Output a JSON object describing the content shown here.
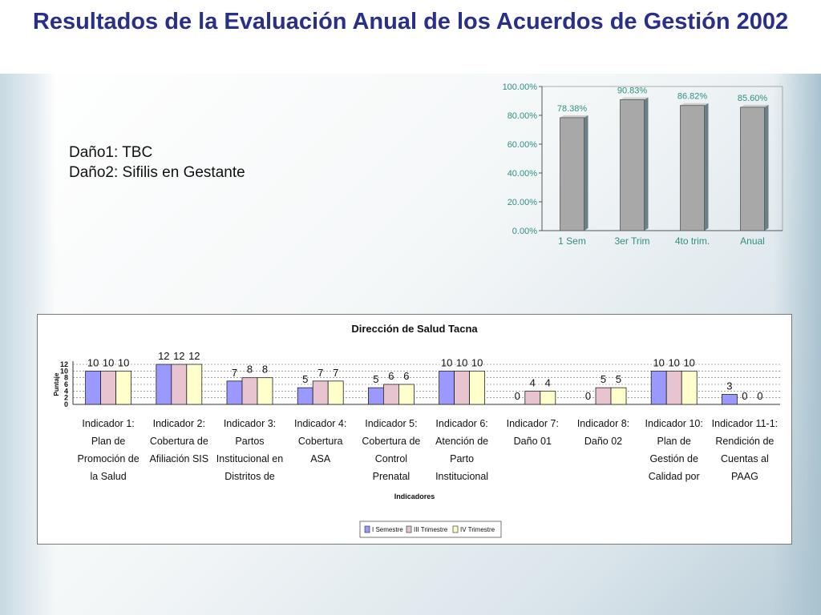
{
  "slide": {
    "title": "Resultados de la Evaluación Anual de los Acuerdos de Gestión 2002",
    "notes": [
      "Daño1: TBC",
      "Daño2: Sifilis en Gestante"
    ]
  },
  "chart_data": [
    {
      "type": "bar",
      "categories": [
        "1 Sem",
        "3er Trim",
        "4to trim.",
        "Anual"
      ],
      "values": [
        78.38,
        90.83,
        86.82,
        85.6
      ],
      "value_labels": [
        "78.38%",
        "90.83%",
        "86.82%",
        "85.60%"
      ],
      "yticks": [
        "0.00%",
        "20.00%",
        "40.00%",
        "60.00%",
        "80.00%",
        "100.00%"
      ],
      "ylim": [
        0,
        100
      ],
      "title": "",
      "xlabel": "",
      "ylabel": "",
      "bar_color": "#a8a8a8",
      "label_color": "#2f8f80",
      "grid": false,
      "legend": "none"
    },
    {
      "type": "bar",
      "title": "Dirección de Salud Tacna",
      "xlabel": "Indicadores",
      "ylabel": "Puntaje",
      "ylim": [
        0,
        12
      ],
      "yticks": [
        "0",
        "2",
        "4",
        "6",
        "8",
        "10",
        "12"
      ],
      "categories": [
        [
          "Indicador 1:",
          "Plan de",
          "Promoción de",
          "la Salud"
        ],
        [
          "Indicador 2:",
          "Cobertura de",
          "Afiliación SIS"
        ],
        [
          "Indicador 3:",
          "Partos",
          "Institucional en",
          "Distritos de"
        ],
        [
          "Indicador 4:",
          "Cobertura",
          "ASA"
        ],
        [
          "Indicador 5:",
          "Cobertura de",
          "Control",
          "Prenatal"
        ],
        [
          "Indicador 6:",
          "Atención de",
          "Parto",
          "Institucional"
        ],
        [
          "Indicador 7:",
          "Daño 01"
        ],
        [
          "Indicador 8:",
          "Daño 02"
        ],
        [
          "Indicador 10:",
          "Plan de",
          "Gestión de",
          "Calidad por"
        ],
        [
          "Indicador 11-1:",
          "Rendición de",
          "Cuentas al",
          "PAAG"
        ]
      ],
      "series": [
        {
          "name": "I Semestre",
          "values": [
            10,
            12,
            7,
            5,
            5,
            10,
            0,
            0,
            10,
            3
          ],
          "color": "#9999ff"
        },
        {
          "name": "III Trimestre",
          "values": [
            10,
            12,
            8,
            7,
            6,
            10,
            4,
            5,
            10,
            0
          ],
          "color": "#e8c4d0"
        },
        {
          "name": "IV Trimestre",
          "values": [
            10,
            12,
            8,
            7,
            6,
            10,
            4,
            5,
            10,
            0
          ],
          "color": "#ffffcc"
        }
      ],
      "grid": true,
      "legend": "bottom"
    }
  ]
}
